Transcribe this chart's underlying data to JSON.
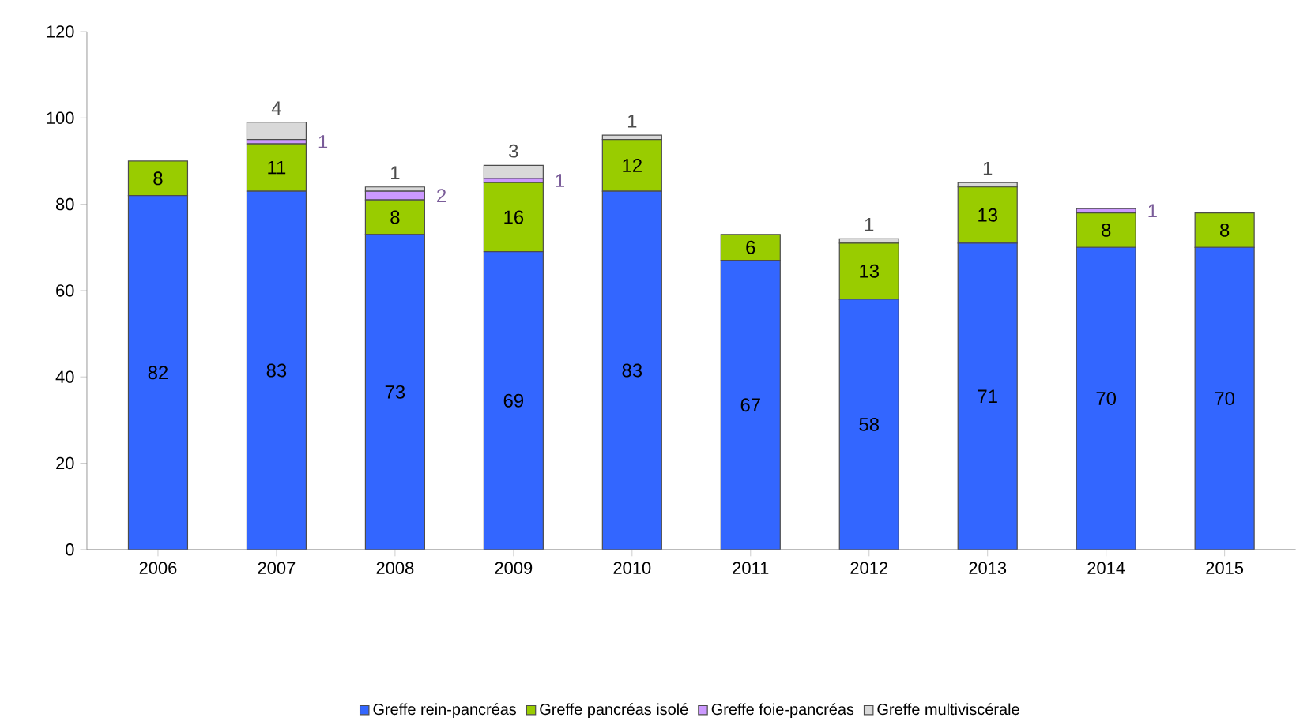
{
  "chart_data": {
    "type": "bar",
    "stacked": true,
    "categories": [
      "2006",
      "2007",
      "2008",
      "2009",
      "2010",
      "2011",
      "2012",
      "2013",
      "2014",
      "2015"
    ],
    "series": [
      {
        "name": "Greffe rein-pancréas",
        "color": "#3366ff",
        "values": [
          82,
          83,
          73,
          69,
          83,
          67,
          58,
          71,
          70,
          70
        ]
      },
      {
        "name": "Greffe pancréas isolé",
        "color": "#99cc00",
        "values": [
          8,
          11,
          8,
          16,
          12,
          6,
          13,
          13,
          8,
          8
        ]
      },
      {
        "name": "Greffe foie-pancréas",
        "color": "#cc99ff",
        "values": [
          null,
          1,
          2,
          1,
          null,
          null,
          null,
          null,
          1,
          null
        ]
      },
      {
        "name": "Greffe multiviscérale",
        "color": "#d9d9d9",
        "values": [
          null,
          4,
          1,
          3,
          1,
          null,
          1,
          1,
          null,
          null
        ]
      }
    ],
    "ylim": [
      0,
      120
    ],
    "yticks": [
      0,
      20,
      40,
      60,
      80,
      100,
      120
    ],
    "grid": false,
    "legend": "bottom",
    "data_labels": true
  }
}
